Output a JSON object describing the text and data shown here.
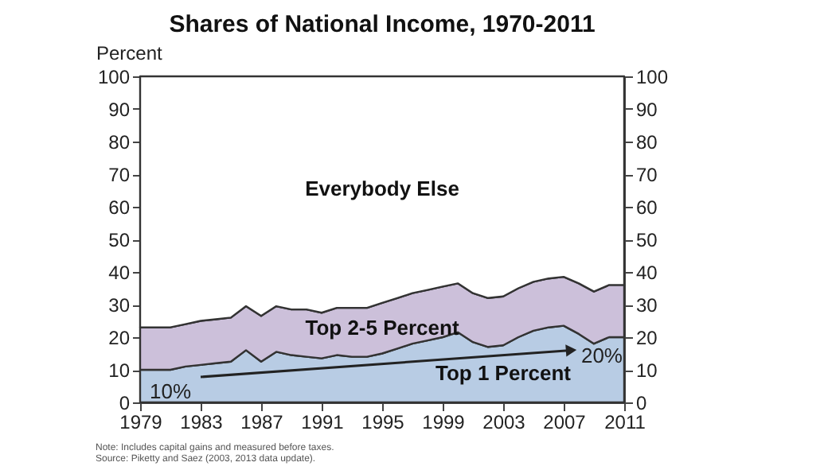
{
  "chart_data": {
    "type": "area",
    "title": "Shares of National Income, 1970-2011",
    "ylabel": "Percent",
    "stacked": true,
    "x": [
      1979,
      1980,
      1981,
      1982,
      1983,
      1984,
      1985,
      1986,
      1987,
      1988,
      1989,
      1990,
      1991,
      1992,
      1993,
      1994,
      1995,
      1996,
      1997,
      1998,
      1999,
      2000,
      2001,
      2002,
      2003,
      2004,
      2005,
      2006,
      2007,
      2008,
      2009,
      2010,
      2011
    ],
    "series": [
      {
        "name": "Top 1 Percent",
        "color": "#b8cce4",
        "values": [
          10,
          10,
          10,
          11,
          11.5,
          12,
          12.5,
          16,
          12.5,
          15.5,
          14.5,
          14,
          13.5,
          14.5,
          14,
          14,
          15,
          16.5,
          18,
          19,
          20,
          21.5,
          18.5,
          17,
          17.5,
          20,
          22,
          23,
          23.5,
          21,
          18,
          20,
          20
        ]
      },
      {
        "name": "Top 2-5 Percent",
        "color": "#ccc0da",
        "values": [
          13,
          13,
          13,
          13,
          13.5,
          13.5,
          13.5,
          13.5,
          14,
          14,
          14,
          14.5,
          14,
          14.5,
          15,
          15,
          15.5,
          15.5,
          15.5,
          15.5,
          15.5,
          15,
          15,
          15,
          15,
          15,
          15,
          15,
          15,
          15.5,
          16,
          16,
          16
        ]
      },
      {
        "name": "Everybody Else",
        "color": "#ffffff",
        "values": [
          77,
          77,
          77,
          76,
          75,
          74.5,
          74,
          70.5,
          73.5,
          70.5,
          71.5,
          71.5,
          72.5,
          71,
          71,
          71,
          69.5,
          68,
          66.5,
          65.5,
          64.5,
          63.5,
          66.5,
          68,
          67.5,
          65,
          63,
          62,
          61.5,
          63.5,
          66,
          64,
          64
        ]
      }
    ],
    "xlim": [
      1979,
      2011
    ],
    "xticks": [
      1979,
      1983,
      1987,
      1991,
      1995,
      1999,
      2003,
      2007,
      2011
    ],
    "ylim": [
      0,
      100
    ],
    "yticks": [
      0,
      10,
      20,
      30,
      40,
      50,
      60,
      70,
      80,
      90,
      100
    ],
    "y2lim": [
      0,
      100
    ],
    "y2ticks": [
      0,
      10,
      20,
      30,
      40,
      50,
      60,
      70,
      80,
      90,
      100
    ],
    "annotations": [
      {
        "text": "10%",
        "x": 1979,
        "y": 10
      },
      {
        "text": "20%",
        "x": 2011,
        "y": 20
      },
      "Note: Includes capital gains and measured before taxes.",
      "Source: Piketty and Saez (2003, 2013 data update)."
    ],
    "legend": false
  }
}
